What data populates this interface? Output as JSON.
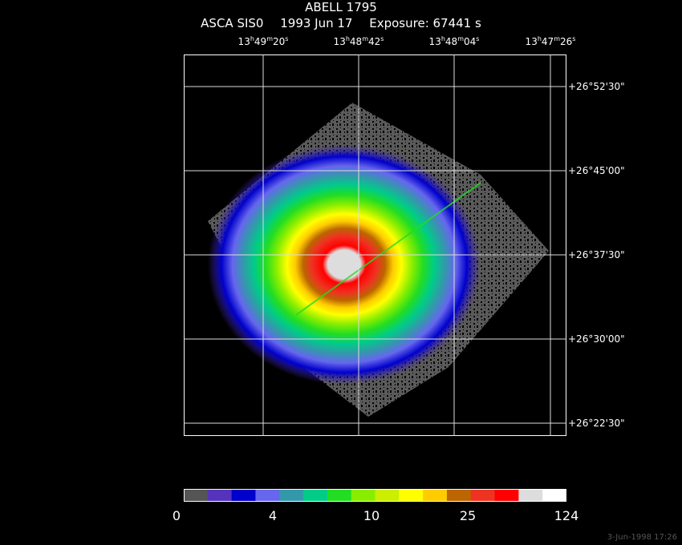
{
  "header": {
    "title": "ABELL 1795",
    "instrument": "ASCA SIS0",
    "date": "1993 Jun 17",
    "exposure": "Exposure: 67441 s"
  },
  "ra_ticks": [
    {
      "h": "13",
      "m": "49",
      "s": "20"
    },
    {
      "h": "13",
      "m": "48",
      "s": "42"
    },
    {
      "h": "13",
      "m": "48",
      "s": "04"
    },
    {
      "h": "13",
      "m": "47",
      "s": "26"
    }
  ],
  "dec_ticks": [
    "+26°52'30\"",
    "+26°45'00\"",
    "+26°37'30\"",
    "+26°30'00\"",
    "+26°22'30\""
  ],
  "colorbar": {
    "colors": [
      "#555555",
      "#5533bb",
      "#0000cc",
      "#6666ee",
      "#3399aa",
      "#00cc88",
      "#22dd22",
      "#88ee00",
      "#ccee00",
      "#ffff00",
      "#ffcc00",
      "#bb6600",
      "#ee3322",
      "#ff0000",
      "#dddddd",
      "#ffffff"
    ],
    "labels": [
      "0",
      "4",
      "10",
      "25",
      "124"
    ]
  },
  "footer": {
    "timestamp": "3-Jun-1998 17:26"
  }
}
